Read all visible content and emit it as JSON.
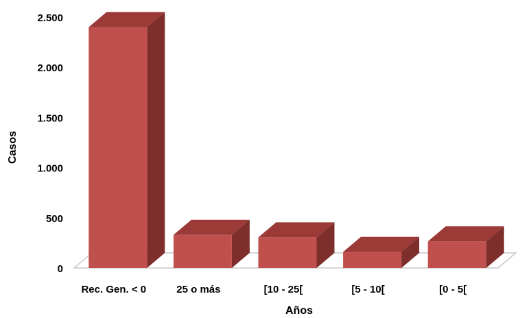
{
  "chart_data": {
    "type": "bar",
    "style": "3d-column",
    "categories": [
      "Rec. Gen. < 0",
      "25 o más",
      "[10 - 25[",
      "[5 - 10[",
      "[0 - 5["
    ],
    "values": [
      2400,
      330,
      305,
      160,
      265
    ],
    "xlabel": "Años",
    "ylabel": "Casos",
    "ylim": [
      0,
      2500
    ],
    "yticks": [
      0,
      500,
      1000,
      1500,
      2000,
      2500
    ],
    "ytick_labels": [
      "0",
      "500",
      "1.000",
      "1.500",
      "2.000",
      "2.500"
    ],
    "grid": false,
    "legend": "none",
    "colors": {
      "front": "#c0504d",
      "top": "#9b3a37",
      "side": "#7e2f2c",
      "floor": "#c8c8c8"
    }
  }
}
